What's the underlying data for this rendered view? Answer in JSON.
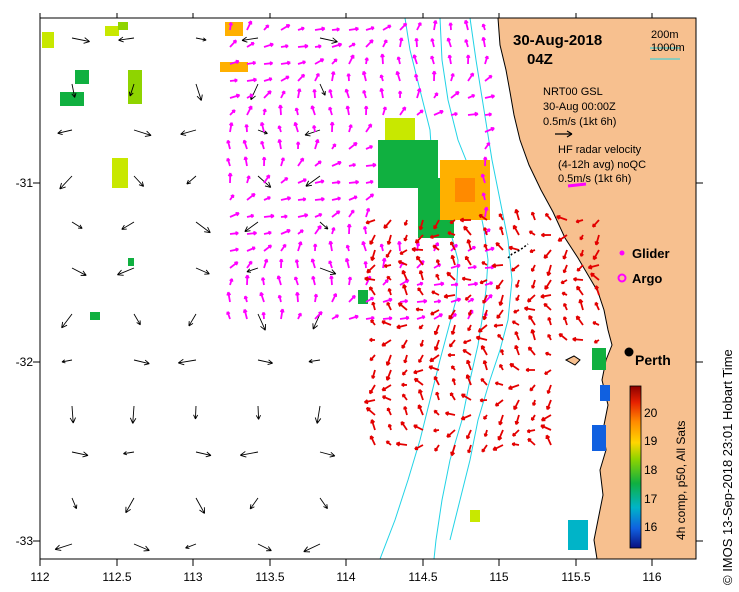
{
  "map": {
    "date": "30-Aug-2018",
    "time": "04Z",
    "x_ticks": [
      "112",
      "112.5",
      "113",
      "113.5",
      "114",
      "114.5",
      "115",
      "115.5",
      "116"
    ],
    "y_ticks": [
      "-31",
      "-32",
      "-33"
    ],
    "isobath_legend": [
      "200m",
      "1000m"
    ],
    "model_legend": [
      "NRT00 GSL",
      "30-Aug 00:00Z",
      "0.5m/s (1kt 6h)"
    ],
    "radar_legend": [
      "HF radar velocity",
      "(4-12h avg) noQC",
      "0.5m/s (1kt 6h)"
    ],
    "glider_label": "Glider",
    "argo_label": "Argo",
    "city": "Perth",
    "colorbar_title": "4h comp, p50, All Sats",
    "colorbar_ticks": [
      "20",
      "19",
      "18",
      "17",
      "16"
    ],
    "credit": "© IMOS 13-Sep-2018 23:01 Hobart Time",
    "colors": {
      "land": "#f7c08f",
      "isobath": "#22d3e6",
      "model_arrows": "#ff00ff",
      "radar_arrows": "#e30000",
      "colorbar_stops": [
        "#8b0000",
        "#e62000",
        "#ff8a00",
        "#ffd600",
        "#8fd400",
        "#10b040",
        "#00b4c8",
        "#1060e0",
        "#0a1080"
      ]
    }
  }
}
